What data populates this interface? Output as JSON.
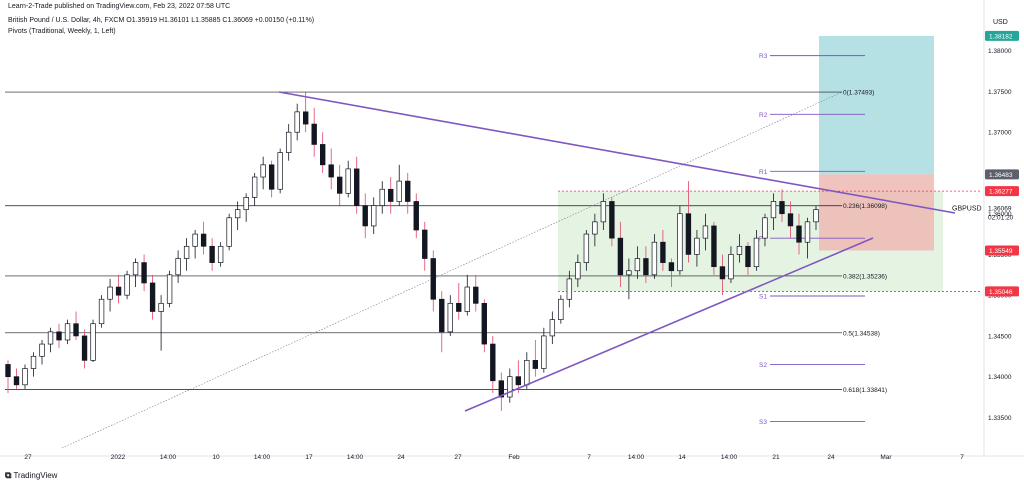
{
  "header": {
    "publisher": "Learn-2-Trade published on TradingView.com, Feb 23, 2022 07:58 UTC",
    "symbol_line": "British Pound / U.S. Dollar, 4h, FXCM  O1.35919  H1.36101  L1.35885  C1.36069  +0.00150 (+0.11%)",
    "indicator_line": "Pivots (Traditional, Weekly, 1, Left)"
  },
  "footer": {
    "brand": "TradingView"
  },
  "colors": {
    "up": "#131722",
    "down": "#131722",
    "wick_down_tint": "#e0456b",
    "trendline": "#7e57c2",
    "pivot_line": "#7e57c2",
    "fib_line": "#131722",
    "tp_zone": "#a9dcdf",
    "sl_zone": "#eeb9b4",
    "range_zone": "#dcefd9",
    "red_label": "#f23645",
    "gray_label": "#5d606b",
    "teal_label": "#26a69a"
  },
  "chart_data": {
    "type": "candlestick",
    "symbol": "GBPUSD",
    "currency": "USD",
    "y_range": [
      1.331,
      1.385
    ],
    "y_ticks": [
      "1.38000",
      "1.37500",
      "1.37000",
      "1.36500",
      "1.36000",
      "1.35500",
      "1.35000",
      "1.34500",
      "1.34000",
      "1.33500"
    ],
    "x_ticks": [
      "27",
      "2022",
      "14:00",
      "10",
      "14:00",
      "17",
      "14:00",
      "24",
      "27",
      "Feb",
      "7",
      "14:00",
      "14",
      "14:00",
      "21",
      "24",
      "Mar",
      "7"
    ],
    "price_labels": [
      {
        "text": "1.38182",
        "value": 1.38182,
        "kind": "teal"
      },
      {
        "text": "1.36483",
        "value": 1.36483,
        "kind": "gray"
      },
      {
        "text": "1.36277",
        "value": 1.36277,
        "kind": "red"
      },
      {
        "text": "1.36069",
        "value": 1.36069,
        "kind": "plain"
      },
      {
        "text": "02:01:20",
        "value": 1.3596,
        "kind": "plain_small"
      },
      {
        "text": "1.35549",
        "value": 1.35549,
        "kind": "red"
      },
      {
        "text": "1.35046",
        "value": 1.35046,
        "kind": "red"
      }
    ],
    "fib_levels": [
      {
        "label": "0(1.37493)",
        "value": 1.37493
      },
      {
        "label": "0.236(1.36098)",
        "value": 1.36098
      },
      {
        "label": "0.382(1.35236)",
        "value": 1.35236
      },
      {
        "label": "0.5(1.34538)",
        "value": 1.34538
      },
      {
        "label": "0.618(1.33841)",
        "value": 1.33841
      }
    ],
    "pivots": [
      {
        "label": "R3",
        "value": 1.3794
      },
      {
        "label": "R2",
        "value": 1.3722
      },
      {
        "label": "R1",
        "value": 1.3652
      },
      {
        "label": "P",
        "value": 1.357
      },
      {
        "label": "S1",
        "value": 1.3499
      },
      {
        "label": "S2",
        "value": 1.3415
      },
      {
        "label": "S3",
        "value": 1.3345
      }
    ],
    "dotted_levels": [
      1.36277,
      1.35046
    ],
    "range_box": {
      "top": 1.36277,
      "bottom": 1.35046
    },
    "position": {
      "tp": 1.38182,
      "entry": 1.36483,
      "stop": 1.35549
    },
    "symbol_label": "GBPUSD",
    "ohlc": [
      [
        1.3415,
        1.342,
        1.338,
        1.34
      ],
      [
        1.34,
        1.341,
        1.3385,
        1.339
      ],
      [
        1.339,
        1.3415,
        1.3385,
        1.341
      ],
      [
        1.341,
        1.343,
        1.34,
        1.3425
      ],
      [
        1.3425,
        1.3445,
        1.3415,
        1.344
      ],
      [
        1.344,
        1.346,
        1.343,
        1.3455
      ],
      [
        1.3455,
        1.3465,
        1.3435,
        1.3445
      ],
      [
        1.3445,
        1.347,
        1.344,
        1.3465
      ],
      [
        1.3465,
        1.348,
        1.3445,
        1.345
      ],
      [
        1.345,
        1.3458,
        1.341,
        1.342
      ],
      [
        1.342,
        1.347,
        1.3418,
        1.3465
      ],
      [
        1.3465,
        1.35,
        1.346,
        1.3495
      ],
      [
        1.3495,
        1.352,
        1.348,
        1.351
      ],
      [
        1.351,
        1.3525,
        1.349,
        1.35
      ],
      [
        1.35,
        1.353,
        1.3495,
        1.3525
      ],
      [
        1.3525,
        1.3545,
        1.351,
        1.354
      ],
      [
        1.354,
        1.355,
        1.3505,
        1.3515
      ],
      [
        1.3515,
        1.3525,
        1.347,
        1.348
      ],
      [
        1.348,
        1.35,
        1.3432,
        1.349
      ],
      [
        1.349,
        1.353,
        1.3485,
        1.3525
      ],
      [
        1.3525,
        1.3555,
        1.3515,
        1.3545
      ],
      [
        1.3545,
        1.357,
        1.353,
        1.356
      ],
      [
        1.356,
        1.358,
        1.3545,
        1.3575
      ],
      [
        1.3575,
        1.359,
        1.355,
        1.356
      ],
      [
        1.356,
        1.357,
        1.353,
        1.354
      ],
      [
        1.354,
        1.3565,
        1.3535,
        1.356
      ],
      [
        1.356,
        1.36,
        1.3555,
        1.3595
      ],
      [
        1.3595,
        1.3615,
        1.358,
        1.3605
      ],
      [
        1.3605,
        1.3625,
        1.359,
        1.362
      ],
      [
        1.362,
        1.365,
        1.361,
        1.3645
      ],
      [
        1.3645,
        1.367,
        1.363,
        1.366
      ],
      [
        1.366,
        1.3665,
        1.362,
        1.363
      ],
      [
        1.363,
        1.368,
        1.3625,
        1.3675
      ],
      [
        1.3675,
        1.371,
        1.3665,
        1.37
      ],
      [
        1.37,
        1.3735,
        1.369,
        1.3725
      ],
      [
        1.3725,
        1.3749,
        1.37,
        1.371
      ],
      [
        1.371,
        1.373,
        1.367,
        1.3685
      ],
      [
        1.3685,
        1.37,
        1.365,
        1.366
      ],
      [
        1.366,
        1.368,
        1.363,
        1.3645
      ],
      [
        1.3645,
        1.366,
        1.361,
        1.3625
      ],
      [
        1.3625,
        1.3665,
        1.362,
        1.3655
      ],
      [
        1.3655,
        1.367,
        1.36,
        1.361
      ],
      [
        1.361,
        1.3625,
        1.357,
        1.3585
      ],
      [
        1.3585,
        1.362,
        1.3575,
        1.361
      ],
      [
        1.361,
        1.364,
        1.36,
        1.363
      ],
      [
        1.363,
        1.3645,
        1.36,
        1.3615
      ],
      [
        1.3615,
        1.366,
        1.361,
        1.364
      ],
      [
        1.364,
        1.365,
        1.36,
        1.3615
      ],
      [
        1.3615,
        1.3625,
        1.357,
        1.358
      ],
      [
        1.358,
        1.359,
        1.353,
        1.3545
      ],
      [
        1.3545,
        1.3555,
        1.348,
        1.3495
      ],
      [
        1.3495,
        1.3505,
        1.343,
        1.3455
      ],
      [
        1.3455,
        1.35,
        1.345,
        1.349
      ],
      [
        1.349,
        1.3515,
        1.347,
        1.348
      ],
      [
        1.348,
        1.3525,
        1.3475,
        1.351
      ],
      [
        1.351,
        1.3525,
        1.348,
        1.349
      ],
      [
        1.349,
        1.3495,
        1.343,
        1.344
      ],
      [
        1.344,
        1.345,
        1.338,
        1.3395
      ],
      [
        1.3395,
        1.3405,
        1.3358,
        1.3375
      ],
      [
        1.3375,
        1.341,
        1.3368,
        1.34
      ],
      [
        1.34,
        1.342,
        1.338,
        1.339
      ],
      [
        1.339,
        1.343,
        1.3385,
        1.342
      ],
      [
        1.342,
        1.3445,
        1.34,
        1.341
      ],
      [
        1.341,
        1.346,
        1.3405,
        1.345
      ],
      [
        1.345,
        1.348,
        1.344,
        1.347
      ],
      [
        1.347,
        1.35,
        1.3465,
        1.3495
      ],
      [
        1.3495,
        1.353,
        1.3485,
        1.352
      ],
      [
        1.352,
        1.355,
        1.351,
        1.354
      ],
      [
        1.354,
        1.358,
        1.353,
        1.3575
      ],
      [
        1.3575,
        1.36,
        1.356,
        1.359
      ],
      [
        1.359,
        1.3625,
        1.358,
        1.3615
      ],
      [
        1.3615,
        1.362,
        1.356,
        1.357
      ],
      [
        1.357,
        1.359,
        1.351,
        1.3525
      ],
      [
        1.3525,
        1.3545,
        1.3495,
        1.353
      ],
      [
        1.353,
        1.356,
        1.352,
        1.3545
      ],
      [
        1.3545,
        1.356,
        1.3515,
        1.3525
      ],
      [
        1.3525,
        1.3575,
        1.352,
        1.3565
      ],
      [
        1.3565,
        1.358,
        1.353,
        1.354
      ],
      [
        1.354,
        1.3545,
        1.351,
        1.353
      ],
      [
        1.353,
        1.361,
        1.3525,
        1.36
      ],
      [
        1.36,
        1.364,
        1.354,
        1.355
      ],
      [
        1.355,
        1.358,
        1.3535,
        1.357
      ],
      [
        1.357,
        1.36,
        1.3555,
        1.3585
      ],
      [
        1.3585,
        1.359,
        1.3525,
        1.3535
      ],
      [
        1.3535,
        1.355,
        1.35,
        1.352
      ],
      [
        1.352,
        1.356,
        1.3515,
        1.355
      ],
      [
        1.355,
        1.3575,
        1.354,
        1.356
      ],
      [
        1.356,
        1.3565,
        1.3525,
        1.3535
      ],
      [
        1.3535,
        1.358,
        1.353,
        1.357
      ],
      [
        1.357,
        1.36,
        1.356,
        1.3595
      ],
      [
        1.3595,
        1.3625,
        1.358,
        1.3615
      ],
      [
        1.3615,
        1.363,
        1.359,
        1.36
      ],
      [
        1.36,
        1.3615,
        1.357,
        1.3585
      ],
      [
        1.3585,
        1.36,
        1.355,
        1.3565
      ],
      [
        1.3565,
        1.3595,
        1.3545,
        1.359
      ],
      [
        1.359,
        1.361,
        1.358,
        1.3605
      ]
    ]
  }
}
